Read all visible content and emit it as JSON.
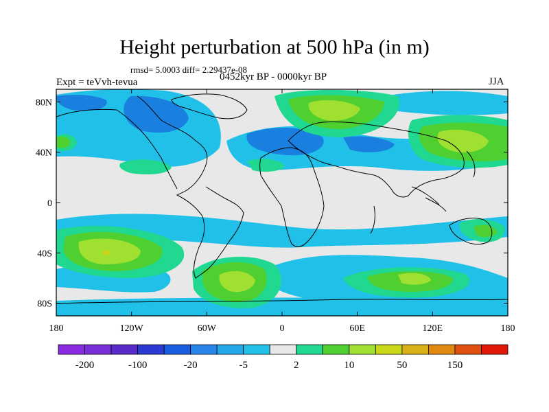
{
  "title": "Height perturbation at 500 hPa (in m)",
  "stats": "rmsd= 5.0003 diff= 2.29437e-08",
  "left_label": "Expt = teVvh-tevua",
  "period_label": "0452kyr BP - 0000kyr BP",
  "season_label": "JJA",
  "lat_ticks": [
    {
      "value": 80,
      "label": "80N"
    },
    {
      "value": 40,
      "label": "40N"
    },
    {
      "value": 0,
      "label": "0"
    },
    {
      "value": -40,
      "label": "40S"
    },
    {
      "value": -80,
      "label": "80S"
    }
  ],
  "lon_ticks": [
    {
      "value": -180,
      "label": "180"
    },
    {
      "value": -120,
      "label": "120W"
    },
    {
      "value": -60,
      "label": "60W"
    },
    {
      "value": 0,
      "label": "0"
    },
    {
      "value": 60,
      "label": "60E"
    },
    {
      "value": 120,
      "label": "120E"
    },
    {
      "value": 180,
      "label": "180"
    }
  ],
  "colorbar": {
    "colors": [
      "#8a2be2",
      "#7a30d8",
      "#5a2bc8",
      "#2b3bd2",
      "#1a5ee0",
      "#2a85e8",
      "#22a8e8",
      "#20c0e8",
      "#e8e8e8",
      "#20d890",
      "#50d030",
      "#a0e030",
      "#c8d818",
      "#d8b018",
      "#e08810",
      "#e05010",
      "#e01808"
    ],
    "labels": [
      "-200",
      "-100",
      "-20",
      "-5",
      "2",
      "10",
      "50",
      "150"
    ],
    "label_boundaries": [
      1,
      3,
      5,
      7,
      9,
      11,
      13,
      15
    ]
  },
  "chart_data": {
    "type": "filled-contour-map",
    "title": "Height perturbation at 500 hPa (in m)",
    "projection": "cylindrical equidistant",
    "lon_range": [
      -180,
      180
    ],
    "lat_range": [
      -90,
      90
    ],
    "contour_levels": [
      -200,
      -100,
      -20,
      -5,
      2,
      10,
      50,
      150
    ],
    "regions": [
      {
        "kind": "positive",
        "center": [
          -140,
          -38
        ],
        "peak_class": "50"
      },
      {
        "kind": "positive",
        "center": [
          -30,
          -60
        ],
        "peak_class": "10"
      },
      {
        "kind": "positive",
        "center": [
          105,
          -60
        ],
        "peak_class": "10"
      },
      {
        "kind": "positive",
        "center": [
          40,
          78
        ],
        "peak_class": "10"
      },
      {
        "kind": "positive",
        "center": [
          140,
          50
        ],
        "peak_class": "10"
      },
      {
        "kind": "negative",
        "center": [
          -150,
          75
        ],
        "peak_class": "-20"
      },
      {
        "kind": "negative",
        "center": [
          10,
          55
        ],
        "peak_class": "-20"
      },
      {
        "kind": "negative",
        "center": [
          -95,
          20
        ],
        "peak_class": "-5"
      },
      {
        "kind": "negative",
        "center": [
          30,
          -35
        ],
        "peak_class": "-5"
      }
    ]
  }
}
